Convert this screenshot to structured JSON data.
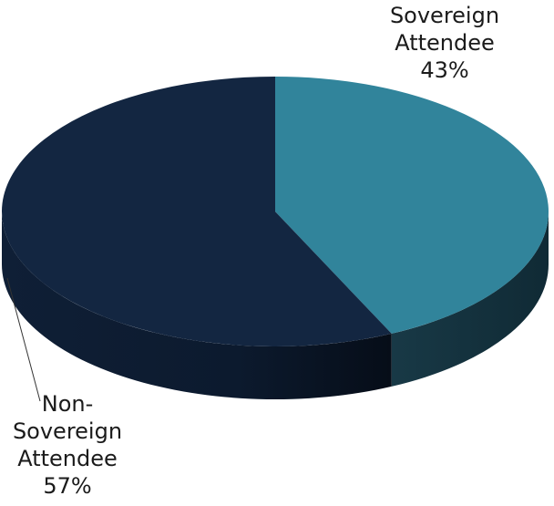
{
  "chart_data": {
    "type": "pie",
    "style": "3d",
    "slices": [
      {
        "label_lines": [
          "Sovereign",
          "Attendee"
        ],
        "percent_label": "43%",
        "value": 43,
        "color": "#31849b"
      },
      {
        "label_lines": [
          "Non-",
          "Sovereign",
          "Attendee"
        ],
        "percent_label": "57%",
        "value": 57,
        "color": "#132641"
      }
    ],
    "title": "",
    "legend": "none"
  }
}
